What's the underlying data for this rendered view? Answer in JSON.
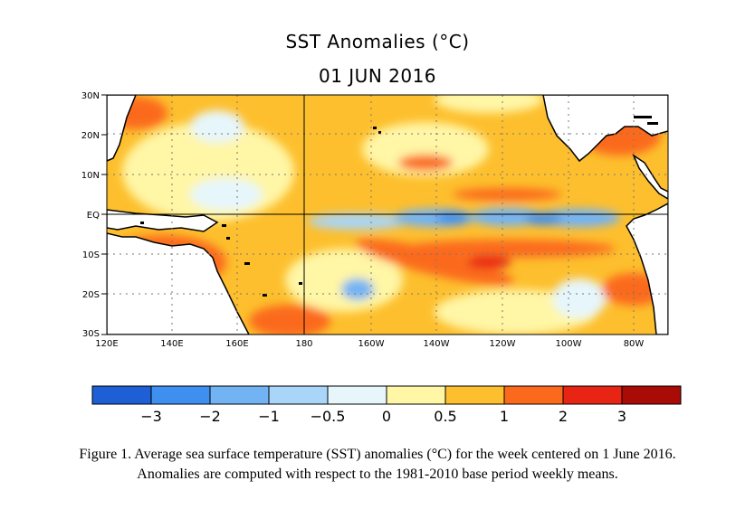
{
  "title": "SST Anomalies (°C)",
  "date": "01 JUN 2016",
  "lat_labels": [
    "30N",
    "20N",
    "10N",
    "EQ",
    "10S",
    "20S",
    "30S"
  ],
  "lon_labels": [
    "120E",
    "140E",
    "160E",
    "180",
    "160W",
    "140W",
    "120W",
    "100W",
    "80W"
  ],
  "colorbar": {
    "labels": [
      "−3",
      "−2",
      "−1",
      "−0.5",
      "0",
      "0.5",
      "1",
      "2",
      "3"
    ],
    "colors": [
      "#1e5fd6",
      "#3f8ff0",
      "#72b3f4",
      "#a8d5f8",
      "#e6f6fb",
      "#fff6a6",
      "#fdbf2d",
      "#fb6a1c",
      "#e82515",
      "#a90c07"
    ]
  },
  "caption_line1": "Figure 1. Average sea surface temperature (SST) anomalies (°C) for the week centered on 1 June 2016.",
  "caption_line2": "Anomalies are computed with respect to the 1981-2010 base period weekly means."
}
